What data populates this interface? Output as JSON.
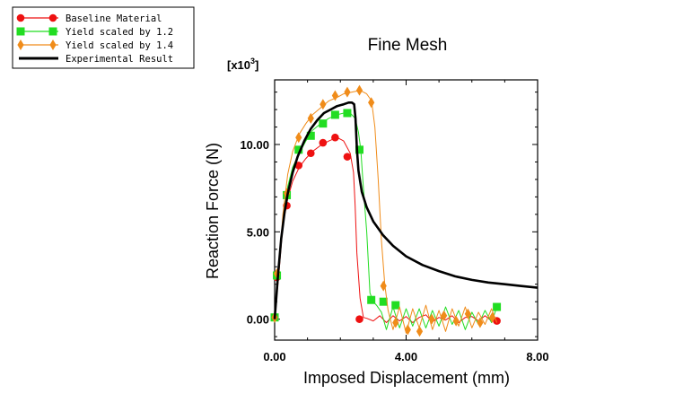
{
  "chart_data": {
    "type": "line",
    "title": "Fine Mesh",
    "xlabel": "Imposed Displacement (mm)",
    "ylabel": "Reaction Force (N)",
    "y_multiplier": "[x10",
    "y_multiplier_exp": "3",
    "y_multiplier_close": "]",
    "xlim": [
      0,
      8
    ],
    "ylim": [
      -1.2,
      13.7
    ],
    "x_ticks": [
      {
        "value": 0,
        "label": "0.00"
      },
      {
        "value": 4,
        "label": "4.00"
      },
      {
        "value": 8,
        "label": "8.00"
      }
    ],
    "y_ticks": [
      {
        "value": 0,
        "label": "0.00"
      },
      {
        "value": 5,
        "label": "5.00"
      },
      {
        "value": 10,
        "label": "10.00"
      }
    ],
    "legend_position": "top-left outside plot",
    "series": [
      {
        "name": "Baseline Material",
        "color": "#ee1111",
        "marker": "circle",
        "x": [
          0.0,
          0.12,
          0.25,
          0.4,
          0.55,
          0.75,
          0.95,
          1.15,
          1.4,
          1.65,
          1.9,
          2.1,
          2.3,
          2.4,
          2.45,
          2.5,
          2.6,
          2.7,
          2.8,
          3.0,
          3.2,
          3.4,
          3.6,
          3.8,
          4.0,
          4.2,
          4.4,
          4.6,
          4.8,
          5.0,
          5.2,
          5.4,
          5.6,
          5.8,
          6.0,
          6.2,
          6.4,
          6.6,
          6.8
        ],
        "y": [
          0.1,
          2.4,
          5.4,
          6.9,
          7.9,
          8.7,
          9.2,
          9.6,
          9.95,
          10.2,
          10.4,
          10.2,
          9.5,
          8.4,
          6.5,
          3.8,
          1.2,
          0.1,
          0.05,
          -0.1,
          0.2,
          -0.2,
          0.2,
          -0.1,
          0.15,
          -0.2,
          0.1,
          0.25,
          -0.15,
          0.1,
          -0.05,
          0.2,
          -0.2,
          0.1,
          0.15,
          -0.1,
          0.2,
          -0.1,
          0.0
        ],
        "marker_x": [
          0.0,
          0.07,
          0.37,
          0.73,
          1.1,
          1.47,
          1.84,
          2.21,
          2.58,
          6.76
        ],
        "marker_y": [
          0.1,
          2.4,
          6.5,
          8.8,
          9.5,
          10.1,
          10.4,
          9.3,
          0.0,
          -0.1
        ]
      },
      {
        "name": "Yield scaled by 1.2",
        "color": "#22dd22",
        "marker": "square",
        "x": [
          0.0,
          0.12,
          0.25,
          0.4,
          0.55,
          0.75,
          0.95,
          1.15,
          1.4,
          1.65,
          1.9,
          2.1,
          2.3,
          2.45,
          2.55,
          2.62,
          2.7,
          2.8,
          2.9,
          3.0,
          3.1,
          3.25,
          3.4,
          3.6,
          3.8,
          4.0,
          4.2,
          4.4,
          4.6,
          4.8,
          5.0,
          5.2,
          5.4,
          5.6,
          5.8,
          6.0,
          6.2,
          6.4,
          6.6,
          6.76
        ],
        "y": [
          0.1,
          2.5,
          5.7,
          7.6,
          8.7,
          9.5,
          10.2,
          10.8,
          11.2,
          11.5,
          11.7,
          11.8,
          11.8,
          11.5,
          10.7,
          9.7,
          7.5,
          5.0,
          1.5,
          1.0,
          0.8,
          0.4,
          -0.6,
          0.7,
          -0.5,
          0.6,
          -0.4,
          0.6,
          -0.5,
          0.5,
          -0.4,
          0.7,
          -0.3,
          0.5,
          -0.6,
          0.4,
          -0.3,
          0.5,
          -0.2,
          0.7
        ],
        "marker_x": [
          0.0,
          0.07,
          0.37,
          0.73,
          1.1,
          1.47,
          1.84,
          2.21,
          2.58,
          2.94,
          3.31,
          3.68,
          6.76
        ],
        "marker_y": [
          0.1,
          2.5,
          7.1,
          9.7,
          10.5,
          11.2,
          11.7,
          11.8,
          9.7,
          1.1,
          1.0,
          0.8,
          0.7
        ]
      },
      {
        "name": "Yield scaled by 1.4",
        "color": "#f08c1a",
        "marker": "diamond",
        "x": [
          0.0,
          0.12,
          0.25,
          0.4,
          0.55,
          0.75,
          0.95,
          1.15,
          1.4,
          1.65,
          1.9,
          2.1,
          2.35,
          2.6,
          2.8,
          2.95,
          3.05,
          3.15,
          3.25,
          3.35,
          3.45,
          3.6,
          3.8,
          4.0,
          4.2,
          4.4,
          4.6,
          4.8,
          5.0,
          5.2,
          5.4,
          5.6,
          5.8,
          6.0,
          6.2,
          6.4,
          6.6,
          6.76
        ],
        "y": [
          0.1,
          2.6,
          6.0,
          8.3,
          9.6,
          10.6,
          11.2,
          11.7,
          12.1,
          12.5,
          12.7,
          12.9,
          13.0,
          13.1,
          12.9,
          12.5,
          11.0,
          8.0,
          4.5,
          2.0,
          0.5,
          -0.6,
          0.7,
          -0.8,
          0.6,
          -0.5,
          0.8,
          -0.6,
          0.5,
          -0.7,
          0.6,
          -0.4,
          0.7,
          -0.5,
          0.4,
          -0.3,
          0.6,
          -0.2
        ],
        "marker_x": [
          0.0,
          0.07,
          0.37,
          0.73,
          1.1,
          1.47,
          1.84,
          2.21,
          2.58,
          2.94,
          3.31,
          3.68,
          4.05,
          4.41,
          4.78,
          5.15,
          5.52,
          5.88,
          6.25,
          6.62
        ],
        "marker_y": [
          0.1,
          2.6,
          7.2,
          10.4,
          11.5,
          12.3,
          12.8,
          13.0,
          13.1,
          12.4,
          1.9,
          -0.2,
          -0.6,
          -0.7,
          0.0,
          0.2,
          -0.1,
          0.3,
          -0.2,
          0.1
        ]
      },
      {
        "name": "Experimental Result",
        "color": "#000000",
        "marker": "none",
        "x": [
          0.0,
          0.05,
          0.1,
          0.2,
          0.3,
          0.4,
          0.55,
          0.7,
          0.9,
          1.1,
          1.3,
          1.5,
          1.7,
          1.9,
          2.1,
          2.25,
          2.35,
          2.42,
          2.46,
          2.5,
          2.55,
          2.65,
          2.8,
          3.0,
          3.3,
          3.6,
          4.0,
          4.5,
          5.0,
          5.5,
          6.0,
          6.5,
          7.0,
          7.5,
          8.0
        ],
        "y": [
          0.0,
          1.2,
          2.5,
          4.6,
          6.1,
          7.2,
          8.4,
          9.3,
          10.2,
          10.9,
          11.4,
          11.8,
          12.0,
          12.2,
          12.3,
          12.4,
          12.4,
          12.3,
          11.5,
          9.8,
          8.5,
          7.3,
          6.4,
          5.6,
          4.8,
          4.2,
          3.6,
          3.1,
          2.75,
          2.45,
          2.25,
          2.1,
          2.0,
          1.9,
          1.8
        ]
      }
    ]
  }
}
